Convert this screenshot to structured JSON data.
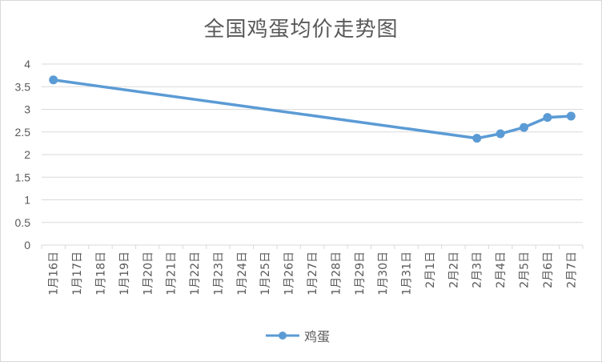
{
  "chart_data": {
    "type": "line",
    "title": "全国鸡蛋均价走势图",
    "x": [
      "1月16日",
      "1月17日",
      "1月18日",
      "1月19日",
      "1月20日",
      "1月21日",
      "1月22日",
      "1月23日",
      "1月24日",
      "1月25日",
      "1月26日",
      "1月27日",
      "1月28日",
      "1月29日",
      "1月30日",
      "1月31日",
      "2月1日",
      "2月2日",
      "2月3日",
      "2月4日",
      "2月5日",
      "2月6日",
      "2月7日"
    ],
    "series": [
      {
        "name": "鸡蛋",
        "color": "#5b9bd5",
        "values": [
          3.65,
          null,
          null,
          null,
          null,
          null,
          null,
          null,
          null,
          null,
          null,
          null,
          null,
          null,
          null,
          null,
          null,
          null,
          2.36,
          2.46,
          2.6,
          2.82,
          2.85
        ]
      }
    ],
    "y_ticks": [
      "0",
      "0.5",
      "1",
      "1.5",
      "2",
      "2.5",
      "3",
      "3.5",
      "4"
    ],
    "ylim": [
      0,
      4
    ],
    "grid": true,
    "legend_position": "bottom"
  }
}
